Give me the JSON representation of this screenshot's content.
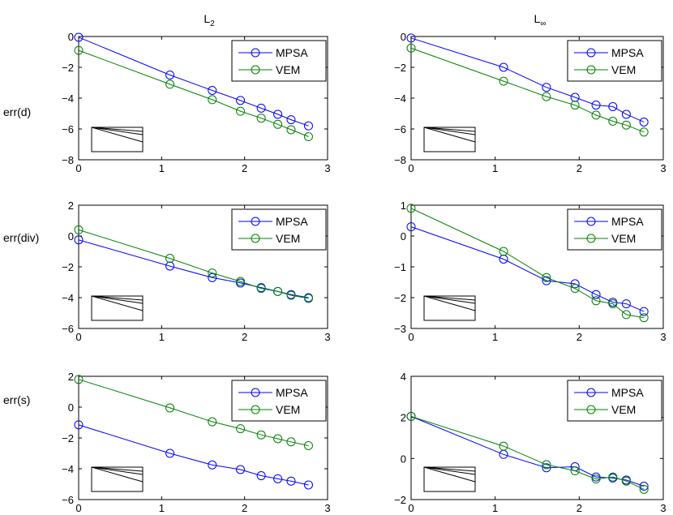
{
  "column_headers": {
    "left": {
      "base": "L",
      "sub": "2"
    },
    "right": {
      "base": "L",
      "sub": "∞"
    }
  },
  "row_labels": [
    "err(d)",
    "err(div)",
    "err(s)"
  ],
  "colors": {
    "MPSA": "#0000ff",
    "VEM": "#008000",
    "axes": "#000000"
  },
  "chart_data": [
    {
      "type": "line",
      "row": 0,
      "col": 0,
      "row_label": "err(d)",
      "column_header": "L2",
      "xlim": [
        0,
        3
      ],
      "ylim": [
        -8,
        0
      ],
      "xticks": [
        0,
        1,
        2,
        3
      ],
      "yticks": [
        -8,
        -6,
        -4,
        -2,
        0
      ],
      "legend": "top-right",
      "x": [
        0,
        1.1,
        1.61,
        1.95,
        2.2,
        2.4,
        2.56,
        2.77
      ],
      "series": [
        {
          "name": "MPSA",
          "values": [
            -0.05,
            -2.5,
            -3.5,
            -4.15,
            -4.65,
            -5.05,
            -5.4,
            -5.8
          ]
        },
        {
          "name": "VEM",
          "values": [
            -0.9,
            -3.1,
            -4.1,
            -4.85,
            -5.3,
            -5.7,
            -6.05,
            -6.5
          ]
        }
      ],
      "slope_triangle": true
    },
    {
      "type": "line",
      "row": 0,
      "col": 1,
      "row_label": "err(d)",
      "column_header": "L∞",
      "xlim": [
        0,
        3
      ],
      "ylim": [
        -8,
        0
      ],
      "xticks": [
        0,
        1,
        2,
        3
      ],
      "yticks": [
        -8,
        -6,
        -4,
        -2,
        0
      ],
      "legend": "top-right",
      "x": [
        0,
        1.1,
        1.61,
        1.95,
        2.2,
        2.4,
        2.56,
        2.77
      ],
      "series": [
        {
          "name": "MPSA",
          "values": [
            -0.1,
            -2.0,
            -3.3,
            -3.95,
            -4.45,
            -4.55,
            -5.05,
            -5.55
          ]
        },
        {
          "name": "VEM",
          "values": [
            -0.75,
            -2.9,
            -3.9,
            -4.45,
            -5.1,
            -5.5,
            -5.75,
            -6.2
          ]
        }
      ],
      "slope_triangle": true
    },
    {
      "type": "line",
      "row": 1,
      "col": 0,
      "row_label": "err(div)",
      "column_header": "L2",
      "xlim": [
        0,
        3
      ],
      "ylim": [
        -6,
        2
      ],
      "xticks": [
        0,
        1,
        2,
        3
      ],
      "yticks": [
        -6,
        -4,
        -2,
        0,
        2
      ],
      "legend": "top-right",
      "x": [
        0,
        1.1,
        1.61,
        1.95,
        2.2,
        2.4,
        2.56,
        2.77
      ],
      "series": [
        {
          "name": "MPSA",
          "values": [
            -0.25,
            -1.95,
            -2.7,
            -3.05,
            -3.35,
            -3.6,
            -3.8,
            -4.0
          ]
        },
        {
          "name": "VEM",
          "values": [
            0.4,
            -1.45,
            -2.4,
            -2.95,
            -3.4,
            -3.6,
            -3.85,
            -4.05
          ]
        }
      ],
      "slope_triangle": true
    },
    {
      "type": "line",
      "row": 1,
      "col": 1,
      "row_label": "err(div)",
      "column_header": "L∞",
      "xlim": [
        0,
        3
      ],
      "ylim": [
        -3,
        1
      ],
      "xticks": [
        0,
        1,
        2,
        3
      ],
      "yticks": [
        -3,
        -2,
        -1,
        0,
        1
      ],
      "legend": "top-right",
      "x": [
        0,
        1.1,
        1.61,
        1.95,
        2.2,
        2.4,
        2.56,
        2.77
      ],
      "series": [
        {
          "name": "MPSA",
          "values": [
            0.3,
            -0.75,
            -1.45,
            -1.55,
            -1.9,
            -2.15,
            -2.2,
            -2.45
          ]
        },
        {
          "name": "VEM",
          "values": [
            0.9,
            -0.5,
            -1.35,
            -1.7,
            -2.1,
            -2.2,
            -2.55,
            -2.65
          ]
        }
      ],
      "slope_triangle": true
    },
    {
      "type": "line",
      "row": 2,
      "col": 0,
      "row_label": "err(s)",
      "column_header": "L2",
      "xlim": [
        0,
        3
      ],
      "ylim": [
        -6,
        2
      ],
      "xticks": [
        0,
        1,
        2,
        3
      ],
      "yticks": [
        -6,
        -4,
        -2,
        0,
        2
      ],
      "legend": "top-right",
      "x": [
        0,
        1.1,
        1.61,
        1.95,
        2.2,
        2.4,
        2.56,
        2.77
      ],
      "series": [
        {
          "name": "MPSA",
          "values": [
            -1.15,
            -3.0,
            -3.75,
            -4.05,
            -4.45,
            -4.65,
            -4.8,
            -5.05
          ]
        },
        {
          "name": "VEM",
          "values": [
            1.8,
            -0.05,
            -0.95,
            -1.4,
            -1.8,
            -2.05,
            -2.25,
            -2.5
          ]
        }
      ],
      "slope_triangle": true
    },
    {
      "type": "line",
      "row": 2,
      "col": 1,
      "row_label": "err(s)",
      "column_header": "L∞",
      "xlim": [
        0,
        3
      ],
      "ylim": [
        -2,
        4
      ],
      "xticks": [
        0,
        1,
        2,
        3
      ],
      "yticks": [
        -2,
        0,
        2,
        4
      ],
      "legend": "top-right",
      "x": [
        0,
        1.1,
        1.61,
        1.95,
        2.2,
        2.4,
        2.56,
        2.77
      ],
      "series": [
        {
          "name": "MPSA",
          "values": [
            2.05,
            0.2,
            -0.45,
            -0.4,
            -0.9,
            -0.95,
            -1.05,
            -1.35
          ]
        },
        {
          "name": "VEM",
          "values": [
            2.05,
            0.6,
            -0.3,
            -0.6,
            -1.0,
            -0.9,
            -1.1,
            -1.5
          ]
        }
      ],
      "slope_triangle": true
    }
  ]
}
